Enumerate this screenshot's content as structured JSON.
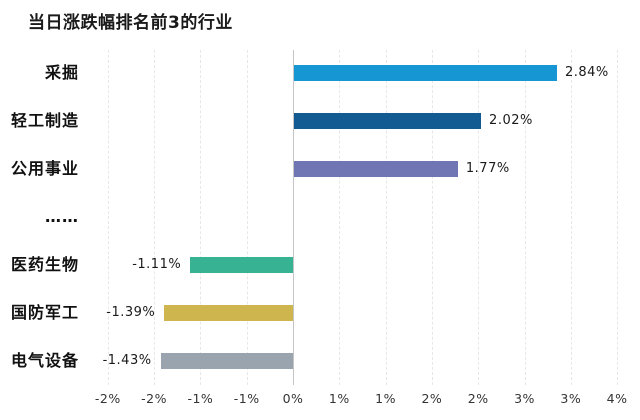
{
  "title": "当日涨跌幅排名前3的行业",
  "colors": {
    "background": "#ffffff",
    "title_text": "#1a1a1a",
    "category_text": "#111111",
    "value_text": "#1a1a1a",
    "tick_text": "#333333",
    "gridline": "#e7e7e7",
    "zero_axis_line": "#c4c4c4"
  },
  "chart_data": {
    "type": "bar",
    "orientation": "horizontal",
    "title": "当日涨跌幅排名前3的行业",
    "categories": [
      "采掘",
      "轻工制造",
      "公用事业",
      "……",
      "医药生物",
      "国防军工",
      "电气设备"
    ],
    "values": [
      2.84,
      2.02,
      1.77,
      null,
      -1.11,
      -1.39,
      -1.43
    ],
    "value_labels": [
      "2.84%",
      "2.02%",
      "1.77%",
      "",
      "-1.11%",
      "-1.39%",
      "-1.43%"
    ],
    "bar_colors": [
      "#1697d4",
      "#115a92",
      "#7076b3",
      null,
      "#37b293",
      "#cfb54e",
      "#9aa4ae"
    ],
    "unit": "%",
    "xlabel": "",
    "ylabel": "",
    "xlim": [
      -2.0,
      3.5
    ],
    "tick_step": 0.5,
    "x_tick_labels": [
      "-2%",
      "-2%",
      "-1%",
      "-1%",
      "0%",
      "1%",
      "1%",
      "2%",
      "2%",
      "3%",
      "3%",
      "4%"
    ],
    "grid": true,
    "legend": false,
    "note": "middle ellipsis row separates top-3 gainers from bottom-3 losers"
  }
}
